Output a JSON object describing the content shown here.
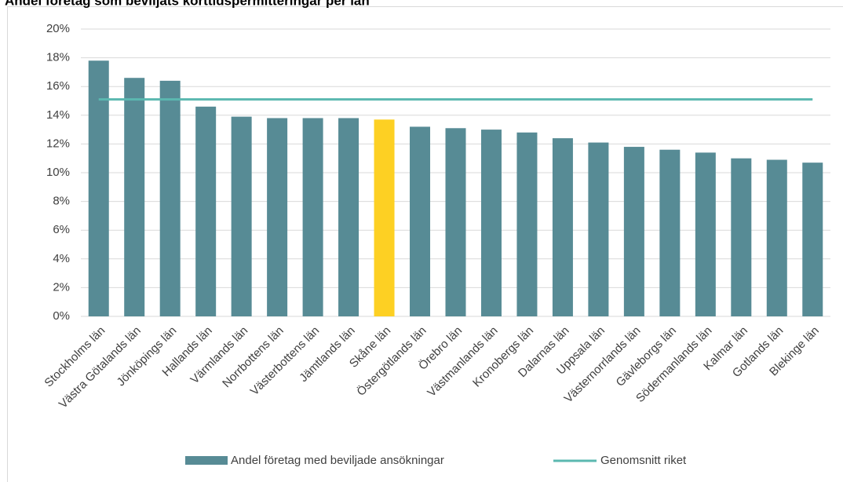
{
  "chart_data": {
    "type": "bar",
    "title": "Andel företag som beviljats korttidspermitteringar per län",
    "categories": [
      "Stockholms län",
      "Västra Götalands län",
      "Jönköpings län",
      "Hallands län",
      "Värmlands län",
      "Norrbottens län",
      "Västerbottens län",
      "Jämtlands län",
      "Skåne län",
      "Östergötlands län",
      "Örebro län",
      "Västmanlands län",
      "Kronobergs län",
      "Dalarnas län",
      "Uppsala län",
      "Västernorrlands län",
      "Gävleborgs län",
      "Södermanlands län",
      "Kalmar län",
      "Gotlands län",
      "Blekinge län"
    ],
    "series": [
      {
        "name": "Andel företag med beviljade ansökningar",
        "color": "#578b95",
        "values": [
          17.8,
          16.6,
          16.4,
          14.6,
          13.9,
          13.8,
          13.8,
          13.8,
          13.7,
          13.2,
          13.1,
          13.0,
          12.8,
          12.4,
          12.1,
          11.8,
          11.6,
          11.4,
          11.0,
          10.9,
          10.7
        ],
        "colors": [
          "#578b95",
          "#578b95",
          "#578b95",
          "#578b95",
          "#578b95",
          "#578b95",
          "#578b95",
          "#578b95",
          "#fdd023",
          "#578b95",
          "#578b95",
          "#578b95",
          "#578b95",
          "#578b95",
          "#578b95",
          "#578b95",
          "#578b95",
          "#578b95",
          "#578b95",
          "#578b95",
          "#578b95"
        ]
      }
    ],
    "reference_line": {
      "name": "Genomsnitt riket",
      "value": 15.1,
      "color": "#5bb8b0"
    },
    "ylim": [
      0,
      20
    ],
    "yticks": [
      {
        "value": 0,
        "label": "0%"
      },
      {
        "value": 2,
        "label": "2%"
      },
      {
        "value": 4,
        "label": "4%"
      },
      {
        "value": 6,
        "label": "6%"
      },
      {
        "value": 8,
        "label": "8%"
      },
      {
        "value": 10,
        "label": "10%"
      },
      {
        "value": 12,
        "label": "12%"
      },
      {
        "value": 14,
        "label": "14%"
      },
      {
        "value": 16,
        "label": "16%"
      },
      {
        "value": 18,
        "label": "18%"
      },
      {
        "value": 20,
        "label": "20%"
      }
    ],
    "grid": true
  }
}
